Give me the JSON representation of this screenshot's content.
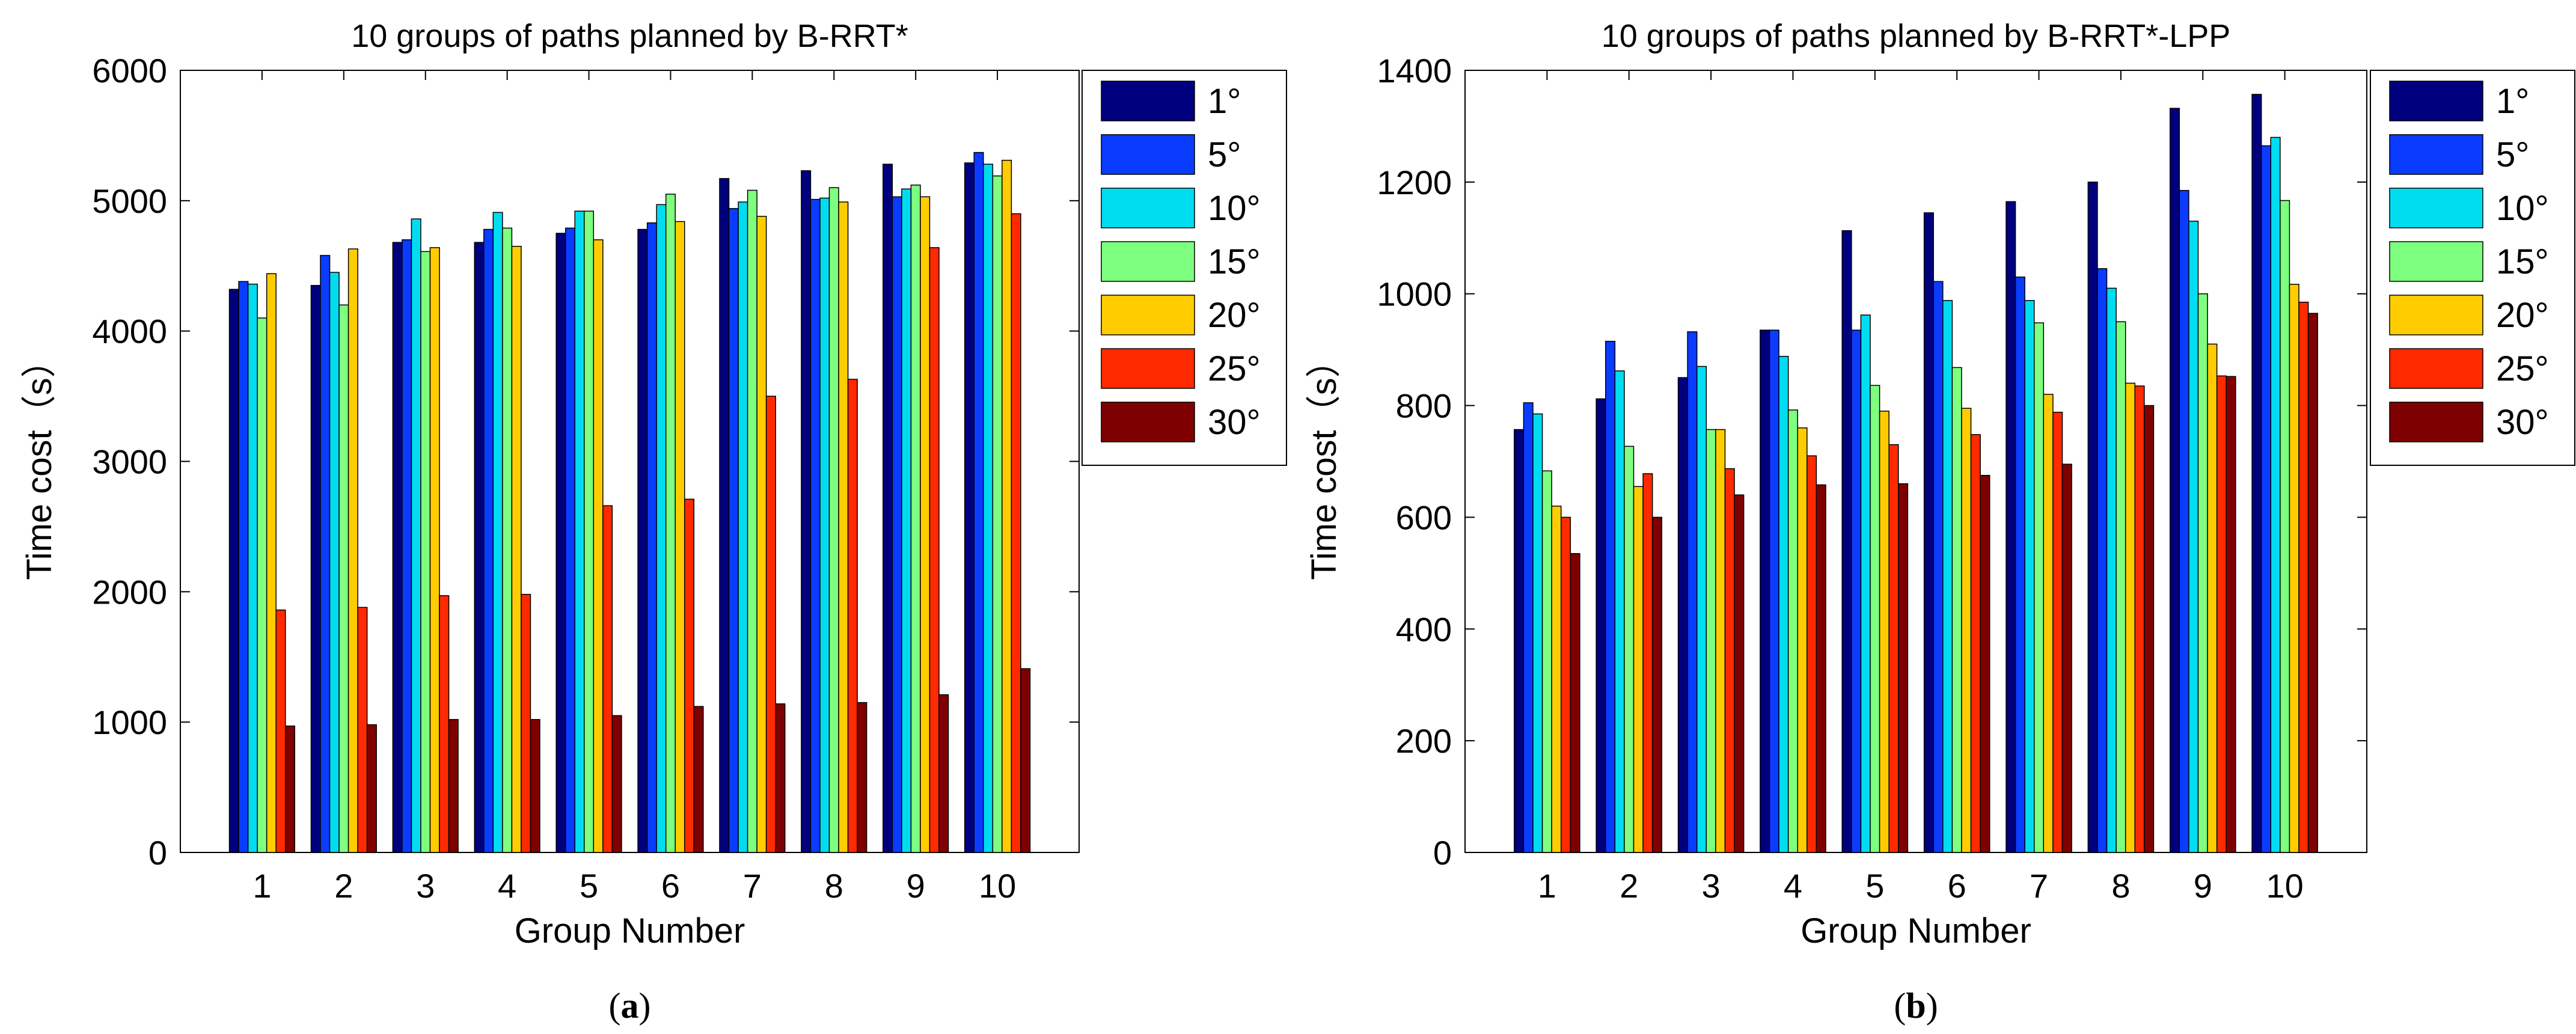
{
  "colors": {
    "series": [
      "#00007f",
      "#0a3cff",
      "#00dcf0",
      "#7fff7f",
      "#ffcc00",
      "#ff2a00",
      "#7f0000"
    ],
    "background": "#ffffff",
    "axis": "#000000"
  },
  "chart_data": [
    {
      "type": "bar",
      "title": "10 groups of paths planned by B-RRT*",
      "xlabel": "Group Number",
      "ylabel": "Time cost（s）",
      "caption_letter": "a",
      "categories": [
        "1",
        "2",
        "3",
        "4",
        "5",
        "6",
        "7",
        "8",
        "9",
        "10"
      ],
      "ylim": [
        0,
        6000
      ],
      "yticks": [
        0,
        1000,
        2000,
        3000,
        4000,
        5000,
        6000
      ],
      "ytick_labels": [
        "0",
        "1000",
        "2000",
        "3000",
        "4000",
        "5000",
        "6000"
      ],
      "legend_position": "top-right",
      "grid": false,
      "series": [
        {
          "name": "1°",
          "values": [
            4320,
            4350,
            4680,
            4680,
            4750,
            4780,
            5170,
            5230,
            5280,
            5290
          ]
        },
        {
          "name": "5°",
          "values": [
            4380,
            4580,
            4700,
            4780,
            4790,
            4830,
            4940,
            5010,
            5030,
            5370
          ]
        },
        {
          "name": "10°",
          "values": [
            4360,
            4450,
            4860,
            4910,
            4920,
            4970,
            4990,
            5020,
            5090,
            5280
          ]
        },
        {
          "name": "15°",
          "values": [
            4100,
            4200,
            4610,
            4790,
            4920,
            5050,
            5080,
            5100,
            5120,
            5190
          ]
        },
        {
          "name": "20°",
          "values": [
            4440,
            4630,
            4640,
            4650,
            4700,
            4840,
            4880,
            4990,
            5030,
            5310
          ]
        },
        {
          "name": "25°",
          "values": [
            1860,
            1880,
            1970,
            1980,
            2660,
            2710,
            3500,
            3630,
            4640,
            4900
          ]
        },
        {
          "name": "30°",
          "values": [
            970,
            980,
            1020,
            1020,
            1050,
            1120,
            1140,
            1150,
            1210,
            1410
          ]
        }
      ]
    },
    {
      "type": "bar",
      "title": "10 groups of paths planned by B-RRT*-LPP",
      "xlabel": "Group Number",
      "ylabel": "Time cost（s）",
      "caption_letter": "b",
      "categories": [
        "1",
        "2",
        "3",
        "4",
        "5",
        "6",
        "7",
        "8",
        "9",
        "10"
      ],
      "ylim": [
        0,
        1400
      ],
      "yticks": [
        0,
        200,
        400,
        600,
        800,
        1000,
        1200,
        1400
      ],
      "ytick_labels": [
        "0",
        "200",
        "400",
        "600",
        "800",
        "1000",
        "1200",
        "1400"
      ],
      "legend_position": "top-right",
      "grid": false,
      "series": [
        {
          "name": "1°",
          "values": [
            757,
            812,
            850,
            935,
            1113,
            1145,
            1165,
            1200,
            1332,
            1357
          ]
        },
        {
          "name": "5°",
          "values": [
            805,
            915,
            932,
            935,
            935,
            1022,
            1030,
            1045,
            1185,
            1265
          ]
        },
        {
          "name": "10°",
          "values": [
            785,
            862,
            870,
            888,
            962,
            988,
            988,
            1010,
            1130,
            1280
          ]
        },
        {
          "name": "15°",
          "values": [
            683,
            727,
            757,
            792,
            836,
            868,
            948,
            950,
            1000,
            1167
          ]
        },
        {
          "name": "20°",
          "values": [
            620,
            655,
            757,
            760,
            790,
            795,
            820,
            840,
            910,
            1017
          ]
        },
        {
          "name": "25°",
          "values": [
            600,
            678,
            687,
            710,
            730,
            748,
            788,
            835,
            853,
            985
          ]
        },
        {
          "name": "30°",
          "values": [
            535,
            600,
            640,
            658,
            660,
            675,
            695,
            800,
            852,
            965
          ]
        }
      ]
    }
  ]
}
